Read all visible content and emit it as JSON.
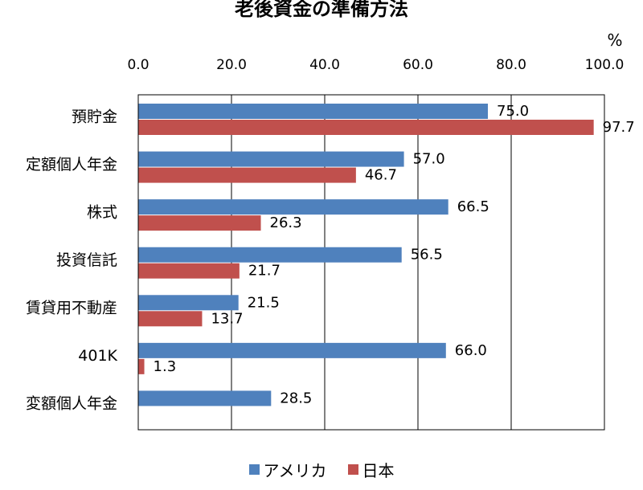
{
  "chart_data": {
    "type": "bar",
    "orientation": "horizontal",
    "title": "老後資金の準備方法",
    "unit": "%",
    "xlim": [
      0,
      100
    ],
    "ticks": [
      "0.0",
      "20.0",
      "40.0",
      "60.0",
      "80.0",
      "100.0"
    ],
    "grid": true,
    "legend_position": "bottom",
    "categories": [
      "預貯金",
      "定額個人年金",
      "株式",
      "投資信託",
      "賃貸用不動産",
      "401K",
      "変額個人年金"
    ],
    "series": [
      {
        "name": "アメリカ",
        "color": "#4F81BD",
        "values": [
          75.0,
          57.0,
          66.5,
          56.5,
          21.5,
          66.0,
          28.5
        ],
        "labels": [
          "75.0",
          "57.0",
          "66.5",
          "56.5",
          "21.5",
          "66.0",
          "28.5"
        ]
      },
      {
        "name": "日本",
        "color": "#C0504D",
        "values": [
          97.7,
          46.7,
          26.3,
          21.7,
          13.7,
          1.3,
          null
        ],
        "labels": [
          "97.7",
          "46.7",
          "26.3",
          "21.7",
          "13.7",
          "1.3",
          null
        ]
      }
    ]
  }
}
